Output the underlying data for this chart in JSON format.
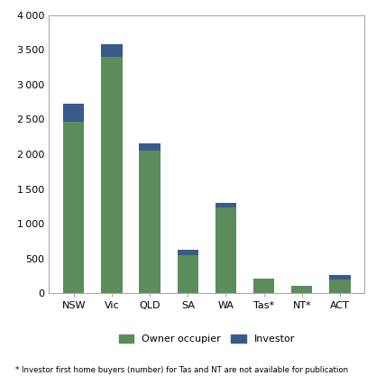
{
  "categories": [
    "NSW",
    "Vic",
    "QLD",
    "SA",
    "WA",
    "Tas*",
    "NT*",
    "ACT"
  ],
  "owner_occupier": [
    2460,
    3400,
    2050,
    550,
    1240,
    215,
    105,
    195
  ],
  "investor": [
    260,
    175,
    100,
    70,
    60,
    0,
    0,
    65
  ],
  "owner_color": "#5B8C5B",
  "investor_color": "#3A5A8C",
  "ylim": [
    0,
    4000
  ],
  "yticks": [
    0,
    500,
    1000,
    1500,
    2000,
    2500,
    3000,
    3500,
    4000
  ],
  "legend_labels": [
    "Owner occupier",
    "Investor"
  ],
  "footnote": "* Investor first home buyers (number) for Tas and NT are not available for publication",
  "bg_color": "#FFFFFF",
  "border_color": "#AAAAAA",
  "bar_width": 0.55
}
